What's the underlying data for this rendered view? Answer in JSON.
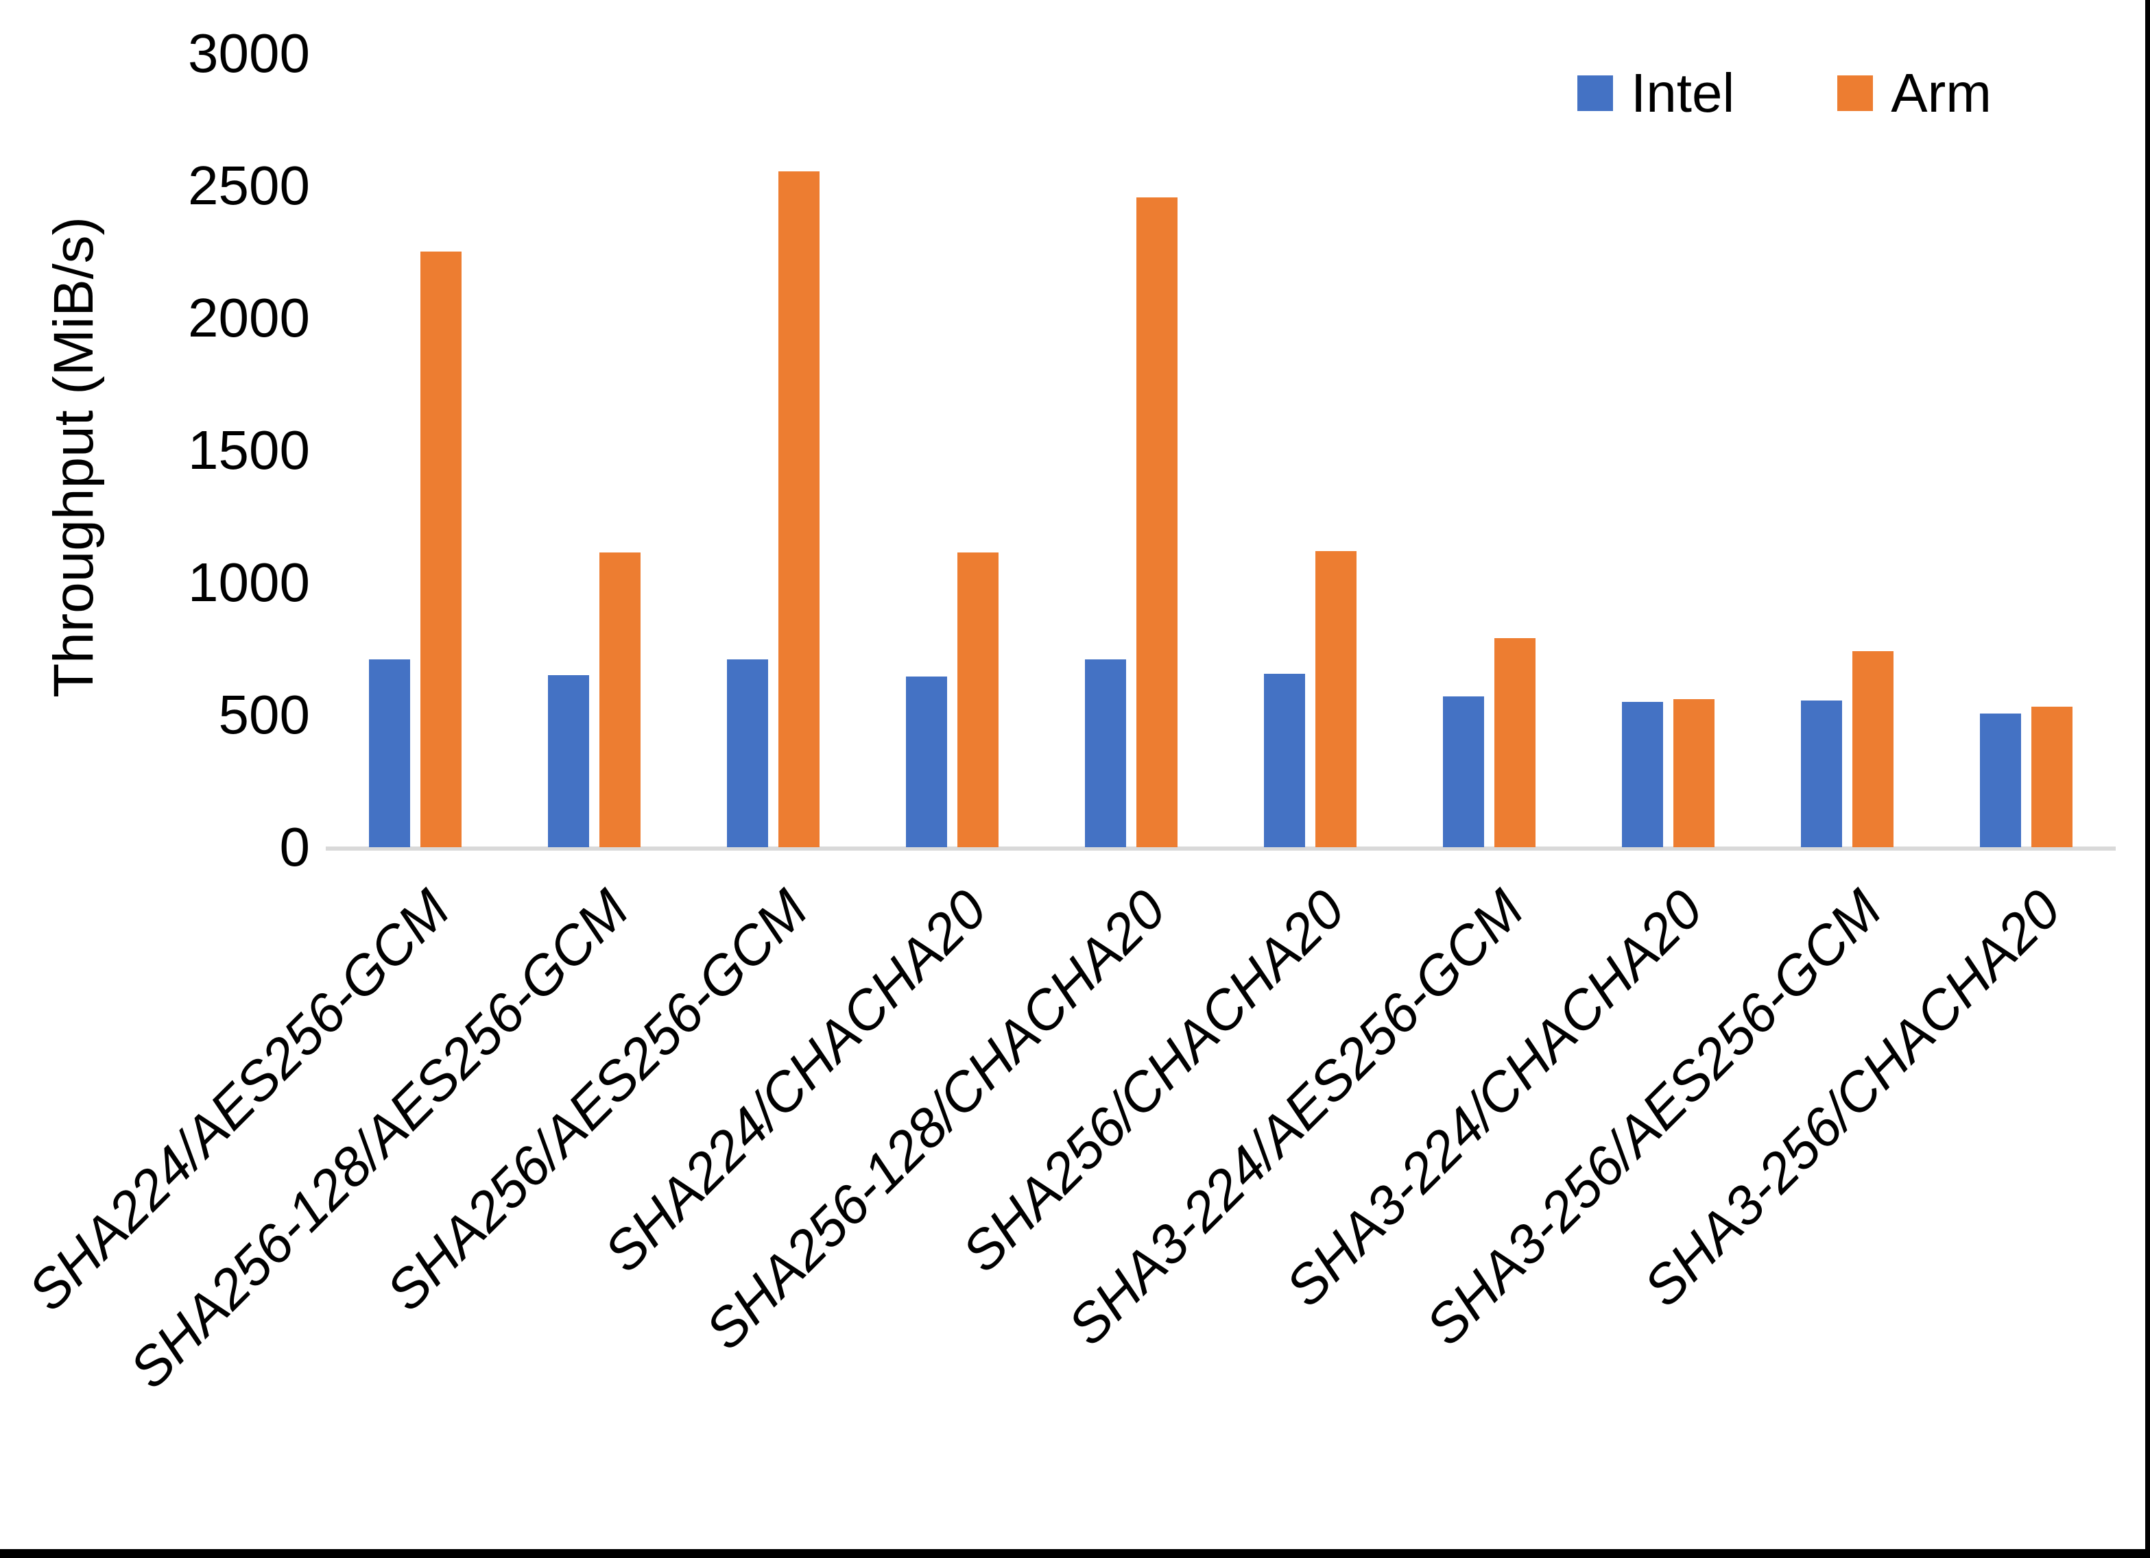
{
  "style": {
    "background": "#FFFFFF",
    "frame_color": "#000000",
    "axis_line_color": "#D9D9D9",
    "text_color": "#000000",
    "intel_color": "#4472C4",
    "arm_color": "#ED7D31"
  },
  "y_axis": {
    "title": "Throughput (MiB/s)",
    "tick_labels": [
      "0",
      "500",
      "1000",
      "1500",
      "2000",
      "2500",
      "3000"
    ]
  },
  "chart_data": {
    "type": "bar",
    "title": "",
    "xlabel": "",
    "ylabel": "Throughput (MiB/s)",
    "ylim": [
      0,
      3000
    ],
    "ytick_step": 500,
    "grid": false,
    "legend_position": "top-right",
    "categories": [
      "SHA224/AES256-GCM",
      "SHA256-128/AES256-GCM",
      "SHA256/AES256-GCM",
      "SHA224/CHACHA20",
      "SHA256-128/CHACHA20",
      "SHA256/CHACHA20",
      "SHA3-224/AES256-GCM",
      "SHA3-224/CHACHA20",
      "SHA3-256/AES256-GCM",
      "SHA3-256/CHACHA20"
    ],
    "series": [
      {
        "name": "Intel",
        "color": "#4472C4",
        "values": [
          710,
          650,
          710,
          645,
          710,
          655,
          570,
          550,
          555,
          505
        ]
      },
      {
        "name": "Arm",
        "color": "#ED7D31",
        "values": [
          2250,
          1115,
          2555,
          1115,
          2455,
          1120,
          790,
          560,
          740,
          530
        ]
      }
    ]
  }
}
